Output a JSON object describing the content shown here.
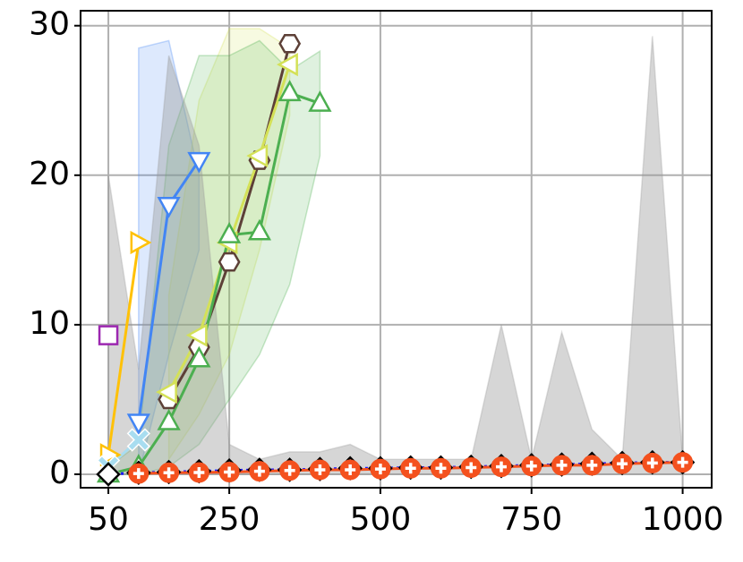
{
  "chart_data": {
    "type": "line",
    "xlim": [
      4,
      1048
    ],
    "ylim": [
      -0.9,
      31
    ],
    "xticks": [
      50,
      250,
      500,
      750,
      1000
    ],
    "yticks": [
      0,
      10,
      20,
      30
    ],
    "grid": true,
    "series": [
      {
        "color": "#9c27b0",
        "marker": "square",
        "x": [
          50
        ],
        "values": [
          9.3
        ]
      },
      {
        "color": "#ffc107",
        "marker": "triangle-right",
        "x": [
          50,
          100
        ],
        "values": [
          1.3,
          15.5
        ]
      },
      {
        "color": "#4285f4",
        "marker": "triangle-down",
        "x": [
          100,
          150,
          200
        ],
        "values": [
          3.5,
          18,
          21
        ],
        "lower": [
          0,
          8,
          15
        ],
        "upper": [
          28.5,
          29,
          20
        ]
      },
      {
        "color": "#a8ddf0",
        "marker": "x",
        "x": [
          50,
          100
        ],
        "values": [
          0.5,
          2.3
        ]
      },
      {
        "color": "#5d4037",
        "marker": "hexagon",
        "x": [
          150,
          200,
          250,
          300,
          350
        ],
        "values": [
          5,
          8.5,
          14.2,
          21,
          28.8
        ]
      },
      {
        "color": "#d4e157",
        "marker": "triangle-left",
        "x": [
          150,
          200,
          250,
          300,
          350
        ],
        "values": [
          5.5,
          9.3,
          15.5,
          21.3,
          27.4
        ],
        "lower": [
          1,
          4,
          8,
          15,
          24
        ],
        "upper": [
          12,
          25,
          29.8,
          29.8,
          28.5
        ]
      },
      {
        "color": "#4caf50",
        "marker": "triangle-up",
        "x": [
          50,
          100,
          150,
          200,
          250,
          300,
          350,
          400
        ],
        "values": [
          0,
          0.5,
          3.5,
          7.7,
          16,
          16.2,
          25.5,
          24.8
        ],
        "lower": [
          0,
          0,
          0.5,
          2,
          5,
          8,
          12.7,
          21.3
        ],
        "upper": [
          0.5,
          2,
          22,
          28,
          28,
          29,
          27,
          28.3
        ]
      },
      {
        "color": "#000000",
        "line_color": "#1a1aff",
        "linestyle": "dotted",
        "band_color": "#999999",
        "marker": "diamond",
        "x": [
          50,
          100,
          150,
          200,
          250,
          300,
          350,
          400,
          450,
          500,
          550,
          600,
          650,
          700,
          750,
          800,
          850,
          900,
          950,
          1000
        ],
        "values": [
          0,
          0.1,
          0.15,
          0.2,
          0.25,
          0.3,
          0.3,
          0.35,
          0.4,
          0.4,
          0.45,
          0.45,
          0.5,
          0.55,
          0.6,
          0.65,
          0.7,
          0.75,
          0.8,
          0.8
        ],
        "lower": [
          0,
          0,
          0,
          0,
          0,
          0,
          0,
          0,
          0,
          0,
          0,
          0,
          0,
          0,
          0,
          0,
          0,
          0,
          0,
          0
        ],
        "upper": [
          20,
          7,
          28,
          22,
          2,
          1,
          1.5,
          1.5,
          2,
          1,
          1,
          1,
          1,
          10,
          1,
          9.5,
          3,
          1,
          29.3,
          1
        ]
      },
      {
        "color": "#f4511e",
        "marker": "plus-circle",
        "x": [
          100,
          150,
          200,
          250,
          300,
          350,
          400,
          450,
          500,
          550,
          600,
          650,
          700,
          750,
          800,
          850,
          900,
          950,
          1000
        ],
        "values": [
          0.05,
          0.1,
          0.12,
          0.15,
          0.2,
          0.25,
          0.3,
          0.3,
          0.35,
          0.4,
          0.4,
          0.45,
          0.5,
          0.55,
          0.6,
          0.6,
          0.7,
          0.75,
          0.8
        ]
      }
    ]
  }
}
